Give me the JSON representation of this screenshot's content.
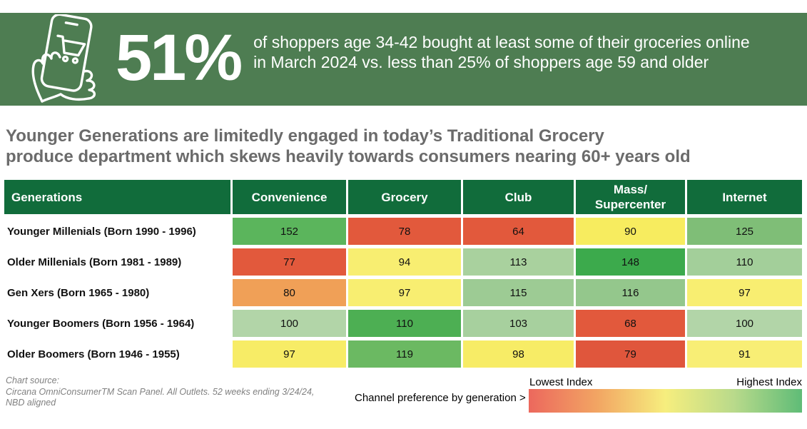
{
  "banner": {
    "bg_color": "#4E7D52",
    "stat_value": "51%",
    "description_line1": "of shoppers age 34-42 bought at least some of their groceries online",
    "description_line2": "in March 2024 vs. less than 25% of shoppers age 59 and older",
    "icon": "hand-holding-phone-with-shopping-cart"
  },
  "title": {
    "line1": "Younger Generations are limitedly engaged in today’s Traditional Grocery",
    "line2": "produce department which skews heavily towards consumers nearing 60+ years old"
  },
  "chart_data": {
    "type": "heatmap",
    "row_header": "Generations",
    "header_bg_color": "#116C3B",
    "columns": [
      "Convenience",
      "Grocery",
      "Club",
      "Mass/\nSupercenter",
      "Internet"
    ],
    "rows": [
      {
        "label": "Younger Millenials (Born 1990 - 1996)",
        "values": [
          152,
          78,
          64,
          90,
          125
        ],
        "colors": [
          "#5BB55C",
          "#E2593C",
          "#E2593C",
          "#F7EC5F",
          "#7FBE77"
        ]
      },
      {
        "label": "Older Millenials (Born 1981 - 1989)",
        "values": [
          77,
          94,
          113,
          148,
          110
        ],
        "colors": [
          "#E2593C",
          "#F8EE71",
          "#A9D19E",
          "#3CAA4C",
          "#A3CF9A"
        ]
      },
      {
        "label": "Gen Xers (Born 1965 - 1980)",
        "values": [
          80,
          97,
          115,
          116,
          97
        ],
        "colors": [
          "#F0A057",
          "#F8EE71",
          "#9DCB94",
          "#94C78C",
          "#F8EE71"
        ]
      },
      {
        "label": "Younger Boomers (Born 1956 - 1964)",
        "values": [
          100,
          110,
          103,
          68,
          100
        ],
        "colors": [
          "#B2D5A8",
          "#4DAF53",
          "#A7D09E",
          "#E2593C",
          "#B2D5A8"
        ]
      },
      {
        "label": "Older Boomers (Born 1946 - 1955)",
        "values": [
          97,
          119,
          98,
          79,
          91
        ],
        "colors": [
          "#F7EC66",
          "#6BB962",
          "#F7EC66",
          "#E0563C",
          "#F8EE75"
        ]
      }
    ]
  },
  "footer": {
    "source_line1": "Chart source:",
    "source_line2": "Circana OmniConsumerTM Scan Panel. All Outlets. 52 weeks ending 3/24/24,",
    "source_line3": "NBD aligned",
    "legend_caption": "Channel preference by generation >",
    "legend": {
      "low_label": "Lowest Index",
      "high_label": "Highest Index",
      "gradient": [
        "#EC685D",
        "#F2A563",
        "#F6EE7E",
        "#B9DA8B",
        "#5FBC77"
      ]
    }
  }
}
